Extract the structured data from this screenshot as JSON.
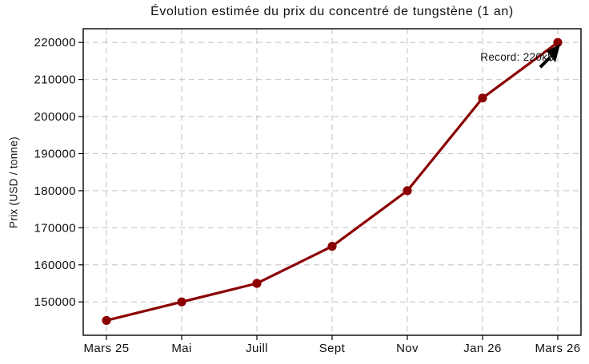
{
  "chart_data": {
    "type": "line",
    "title": "Évolution estimée du prix du concentré de tungstène (1 an)",
    "xlabel": "",
    "ylabel": "Prix (USD / tonne)",
    "categories": [
      "Mars 25",
      "Mai",
      "Juill",
      "Sept",
      "Nov",
      "Jan 26",
      "Mars 26"
    ],
    "series": [
      {
        "values": [
          145000,
          150000,
          155000,
          165000,
          180000,
          205000,
          220000
        ]
      }
    ],
    "yticks": [
      150000,
      160000,
      170000,
      180000,
      190000,
      200000,
      210000,
      220000
    ],
    "ylim": [
      141000,
      223700
    ],
    "grid": true,
    "grid_style": "dashed",
    "legend_position": "none",
    "annotation": {
      "text": "Record: 220k$",
      "target_index": 6,
      "target_value": 220000
    },
    "colors": {
      "line": "#8B0000",
      "marker": "#8B0000",
      "grid": "#c8c8c8",
      "axis": "#000000",
      "text": "#111111",
      "annotation_arrow": "#000000"
    }
  }
}
